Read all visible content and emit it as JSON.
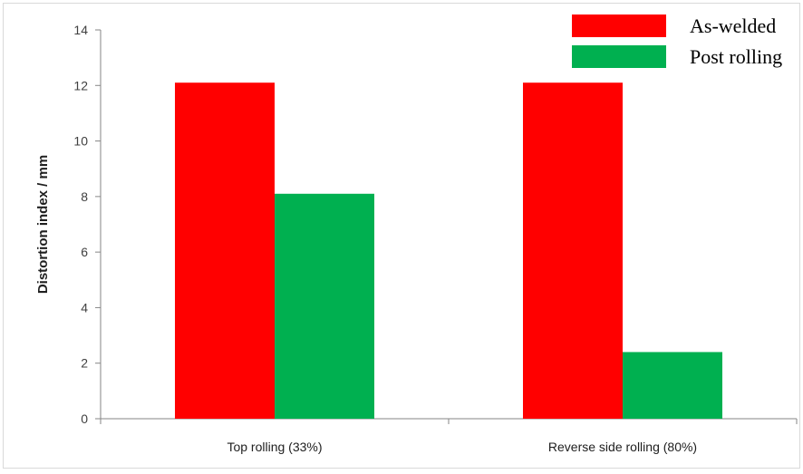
{
  "chart_data": {
    "type": "bar",
    "title": "",
    "xlabel": "",
    "ylabel": "Distortion index / mm",
    "categories": [
      "Top rolling (33%)",
      "Reverse side rolling (80%)"
    ],
    "series": [
      {
        "name": "As-welded",
        "values": [
          12.1,
          12.1
        ],
        "color": "#ff0000"
      },
      {
        "name": "Post rolling",
        "values": [
          8.1,
          2.4
        ],
        "color": "#00b050"
      }
    ],
    "ylim": [
      0,
      14
    ],
    "yticks": [
      0,
      2,
      4,
      6,
      8,
      10,
      12,
      14
    ],
    "grid": false,
    "legend_position": "top-right"
  }
}
